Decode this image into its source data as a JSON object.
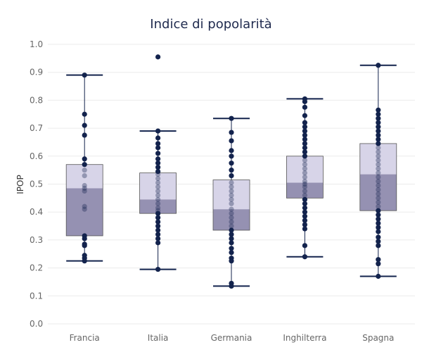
{
  "chart_data": {
    "type": "boxplot",
    "title": "Indice di popolarità",
    "ylabel": "IPOP",
    "xlabel": "",
    "ylim": [
      0.0,
      1.0
    ],
    "yticks": [
      "0.0",
      "0.1",
      "0.2",
      "0.3",
      "0.4",
      "0.5",
      "0.6",
      "0.7",
      "0.8",
      "0.9",
      "1.0"
    ],
    "grid": true,
    "colors": {
      "upper_box": "#d7d4e8",
      "lower_box": "#9591b2",
      "box_border": "#555555",
      "points": "#13234d",
      "whisker": "#13234d",
      "title": "#1f2a4e"
    },
    "categories": [
      "Francia",
      "Italia",
      "Germania",
      "Inghilterra",
      "Spagna"
    ],
    "boxes": [
      {
        "category": "Francia",
        "min": 0.225,
        "q1": 0.315,
        "median": 0.485,
        "q3": 0.57,
        "max": 0.89,
        "points": [
          0.89,
          0.75,
          0.71,
          0.675,
          0.59,
          0.57,
          0.55,
          0.53,
          0.495,
          0.485,
          0.475,
          0.42,
          0.41,
          0.315,
          0.305,
          0.285,
          0.28,
          0.245,
          0.235,
          0.225
        ]
      },
      {
        "category": "Italia",
        "min": 0.195,
        "q1": 0.395,
        "median": 0.445,
        "q3": 0.54,
        "max": 0.69,
        "points": [
          0.955,
          0.69,
          0.665,
          0.645,
          0.63,
          0.61,
          0.59,
          0.575,
          0.56,
          0.545,
          0.535,
          0.52,
          0.505,
          0.49,
          0.475,
          0.46,
          0.445,
          0.43,
          0.415,
          0.405,
          0.395,
          0.38,
          0.365,
          0.35,
          0.335,
          0.32,
          0.305,
          0.29,
          0.195
        ]
      },
      {
        "category": "Germania",
        "min": 0.135,
        "q1": 0.335,
        "median": 0.41,
        "q3": 0.515,
        "max": 0.735,
        "points": [
          0.735,
          0.685,
          0.655,
          0.62,
          0.6,
          0.575,
          0.55,
          0.53,
          0.505,
          0.49,
          0.475,
          0.46,
          0.445,
          0.43,
          0.41,
          0.395,
          0.38,
          0.365,
          0.35,
          0.335,
          0.32,
          0.305,
          0.29,
          0.27,
          0.255,
          0.235,
          0.225,
          0.145,
          0.135
        ]
      },
      {
        "category": "Inghilterra",
        "min": 0.24,
        "q1": 0.45,
        "median": 0.505,
        "q3": 0.6,
        "max": 0.805,
        "points": [
          0.805,
          0.795,
          0.775,
          0.745,
          0.72,
          0.705,
          0.69,
          0.675,
          0.66,
          0.645,
          0.63,
          0.615,
          0.6,
          0.585,
          0.57,
          0.555,
          0.54,
          0.525,
          0.51,
          0.5,
          0.49,
          0.475,
          0.46,
          0.445,
          0.43,
          0.415,
          0.4,
          0.385,
          0.37,
          0.355,
          0.34,
          0.28,
          0.24
        ]
      },
      {
        "category": "Spagna",
        "min": 0.17,
        "q1": 0.405,
        "median": 0.535,
        "q3": 0.645,
        "max": 0.925,
        "points": [
          0.925,
          0.765,
          0.75,
          0.735,
          0.72,
          0.705,
          0.69,
          0.675,
          0.66,
          0.645,
          0.63,
          0.615,
          0.6,
          0.585,
          0.57,
          0.555,
          0.54,
          0.525,
          0.51,
          0.495,
          0.48,
          0.465,
          0.45,
          0.435,
          0.42,
          0.405,
          0.39,
          0.375,
          0.36,
          0.345,
          0.33,
          0.31,
          0.295,
          0.28,
          0.23,
          0.215,
          0.17
        ]
      }
    ]
  }
}
